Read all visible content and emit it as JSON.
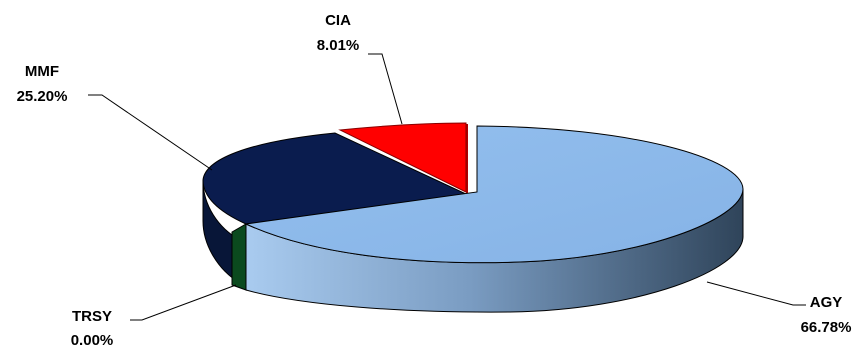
{
  "chart_data": {
    "type": "pie",
    "title": "",
    "three_d": true,
    "legend": "none",
    "slices": [
      {
        "name": "AGY",
        "value_label": "66.78%",
        "value": 66.78,
        "color": "#8DB9EB",
        "side_color": "#3F5973"
      },
      {
        "name": "TRSY",
        "value_label": "0.00%",
        "value": 0.0,
        "color": "#0B4A1E",
        "side_color": "#0B4A1E"
      },
      {
        "name": "MMF",
        "value_label": "25.20%",
        "value": 25.2,
        "color": "#0A1C4E",
        "side_color": "#081638"
      },
      {
        "name": "CIA",
        "value_label": "8.01%",
        "value": 8.01,
        "color": "#FF0000",
        "side_color": "#B00000"
      }
    ]
  }
}
